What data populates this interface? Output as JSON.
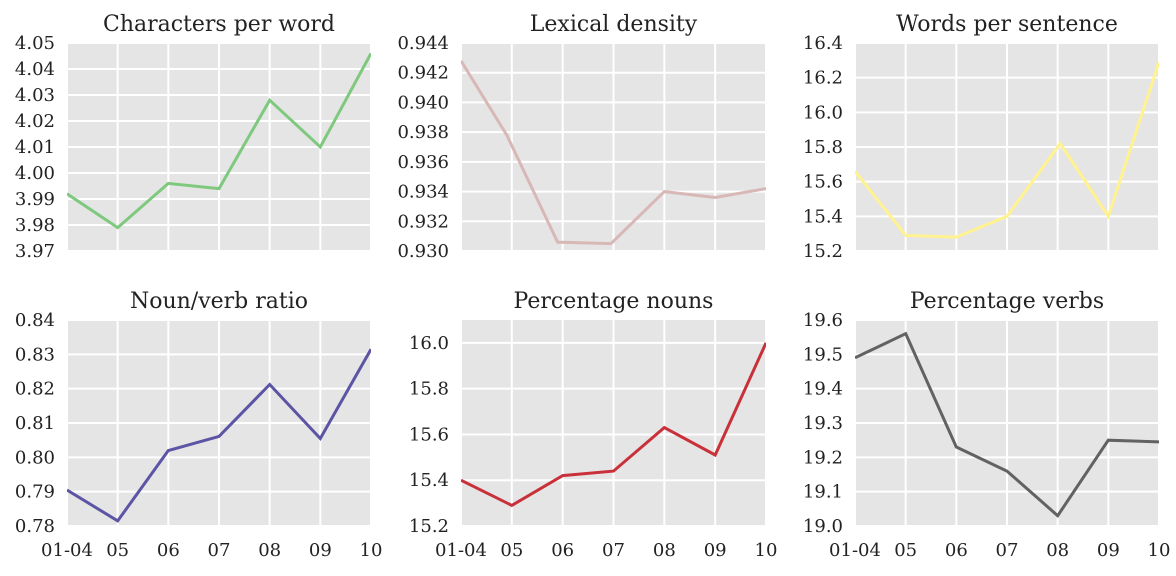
{
  "chart_data": [
    {
      "type": "line",
      "title": "Characters per word",
      "x_ticks": [
        "01-04",
        "05",
        "06",
        "07",
        "08",
        "09",
        "10"
      ],
      "y_ticks": [
        "3.97",
        "3.98",
        "3.99",
        "4.00",
        "4.01",
        "4.02",
        "4.03",
        "4.04",
        "4.05"
      ],
      "ylim": [
        3.97,
        4.05
      ],
      "color": "#7fc97f",
      "points": [
        [
          0,
          3.992
        ],
        [
          1,
          3.979
        ],
        [
          2,
          3.996
        ],
        [
          3,
          3.994
        ],
        [
          4,
          4.028
        ],
        [
          5,
          4.01
        ],
        [
          6,
          4.046
        ]
      ]
    },
    {
      "type": "line",
      "title": "Lexical density",
      "x_ticks": [
        "01-04",
        "05",
        "06",
        "07",
        "08",
        "09",
        "10"
      ],
      "y_ticks": [
        "0.930",
        "0.932",
        "0.934",
        "0.936",
        "0.938",
        "0.940",
        "0.942",
        "0.944"
      ],
      "ylim": [
        0.93,
        0.944
      ],
      "color": "#d8b8b6",
      "points": [
        [
          0,
          0.9428
        ],
        [
          0.9,
          0.9378
        ],
        [
          1.9,
          0.9306
        ],
        [
          2.95,
          0.9305
        ],
        [
          4.0,
          0.934
        ],
        [
          5.0,
          0.9336
        ],
        [
          6,
          0.9342
        ]
      ]
    },
    {
      "type": "line",
      "title": "Words per sentence",
      "x_ticks": [
        "01-04",
        "05",
        "06",
        "07",
        "08",
        "09",
        "10"
      ],
      "y_ticks": [
        "15.2",
        "15.4",
        "15.6",
        "15.8",
        "16.0",
        "16.2",
        "16.4"
      ],
      "ylim": [
        15.2,
        16.4
      ],
      "color": "#fff28f",
      "points": [
        [
          0,
          15.66
        ],
        [
          1,
          15.29
        ],
        [
          2,
          15.28
        ],
        [
          3,
          15.4
        ],
        [
          4.05,
          15.82
        ],
        [
          5,
          15.4
        ],
        [
          6,
          16.29
        ]
      ]
    },
    {
      "type": "line",
      "title": "Noun/verb ratio",
      "x_ticks": [
        "01-04",
        "05",
        "06",
        "07",
        "08",
        "09",
        "10"
      ],
      "y_ticks": [
        "0.78",
        "0.79",
        "0.80",
        "0.81",
        "0.82",
        "0.83",
        "0.84"
      ],
      "ylim": [
        0.78,
        0.84
      ],
      "color": "#5c54a4",
      "points": [
        [
          0,
          0.7905
        ],
        [
          1,
          0.7815
        ],
        [
          2,
          0.802
        ],
        [
          3,
          0.8061
        ],
        [
          4.0,
          0.8212
        ],
        [
          5.0,
          0.8055
        ],
        [
          6,
          0.8315
        ]
      ]
    },
    {
      "type": "line",
      "title": "Percentage nouns",
      "x_ticks": [
        "01-04",
        "05",
        "06",
        "07",
        "08",
        "09",
        "10"
      ],
      "y_ticks": [
        "15.2",
        "15.4",
        "15.6",
        "15.8",
        "16.0"
      ],
      "ylim": [
        15.2,
        16.1
      ],
      "color": "#c9313a",
      "points": [
        [
          0,
          15.4
        ],
        [
          1,
          15.29
        ],
        [
          2,
          15.42
        ],
        [
          3,
          15.44
        ],
        [
          4,
          15.63
        ],
        [
          5,
          15.51
        ],
        [
          6,
          16.0
        ]
      ]
    },
    {
      "type": "line",
      "title": "Percentage verbs",
      "x_ticks": [
        "01-04",
        "05",
        "06",
        "07",
        "08",
        "09",
        "10"
      ],
      "y_ticks": [
        "19.0",
        "19.1",
        "19.2",
        "19.3",
        "19.4",
        "19.5",
        "19.6"
      ],
      "ylim": [
        19.0,
        19.6
      ],
      "color": "#626262",
      "points": [
        [
          0,
          19.49
        ],
        [
          1,
          19.56
        ],
        [
          2,
          19.23
        ],
        [
          3,
          19.16
        ],
        [
          4,
          19.03
        ],
        [
          5,
          19.25
        ],
        [
          6,
          19.245
        ]
      ]
    }
  ]
}
